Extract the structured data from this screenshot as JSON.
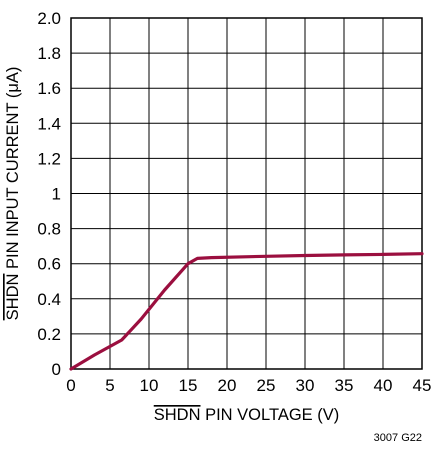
{
  "chart_data": {
    "type": "line",
    "xlabel": {
      "overlined": "SHDN",
      "rest": " PIN VOLTAGE (V)"
    },
    "ylabel": {
      "overlined": "SHDN",
      "rest": " PIN INPUT CURRENT (μA)"
    },
    "xlim": [
      0,
      45
    ],
    "ylim": [
      0,
      2.0
    ],
    "xticks": [
      "0",
      "5",
      "10",
      "15",
      "20",
      "25",
      "30",
      "35",
      "40",
      "45"
    ],
    "yticks": [
      "0",
      "0.2",
      "0.4",
      "0.6",
      "0.8",
      "1",
      "1.2",
      "1.4",
      "1.6",
      "1.8",
      "2.0"
    ],
    "grid": true,
    "series": [
      {
        "color": "#9b0f3f",
        "x": [
          0,
          3,
          6.5,
          9,
          12,
          15,
          16.2,
          18,
          25,
          30,
          35,
          40,
          45
        ],
        "y": [
          0,
          0.08,
          0.165,
          0.285,
          0.45,
          0.6,
          0.63,
          0.635,
          0.642,
          0.647,
          0.65,
          0.653,
          0.657
        ]
      }
    ],
    "figure_id": "3007 G22"
  }
}
